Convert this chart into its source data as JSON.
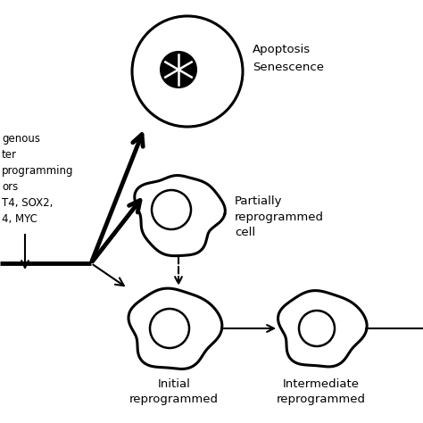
{
  "bg_color": "#ffffff",
  "text_color": "#000000",
  "left_text_lines": [
    "genous",
    "ter",
    "programming",
    "ors",
    "T4, SOX2,",
    "4, MYC"
  ],
  "labels": {
    "apoptosis": [
      "Apoptosis",
      "Senescence"
    ],
    "partial": [
      "Partially",
      "reprogrammed",
      "cell"
    ],
    "initial": [
      "Initial",
      "reprogrammed"
    ],
    "intermediate": [
      "Intermediate",
      "reprogrammed"
    ]
  },
  "figsize": [
    4.74,
    4.74
  ],
  "dpi": 100
}
